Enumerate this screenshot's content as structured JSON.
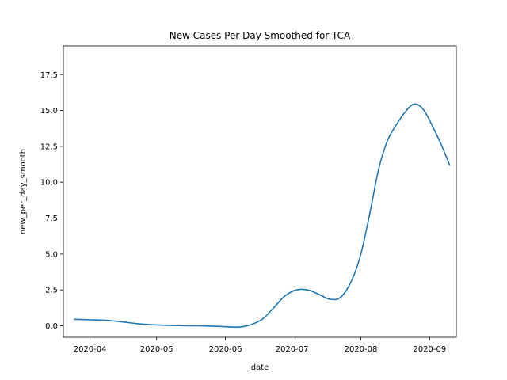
{
  "chart_data": {
    "type": "line",
    "title": "New Cases Per Day Smoothed for TCA",
    "xlabel": "date",
    "ylabel": "new_per_day_smooth",
    "x_ticks": [
      "2020-04",
      "2020-05",
      "2020-06",
      "2020-07",
      "2020-08",
      "2020-09"
    ],
    "y_ticks": [
      "0.0",
      "2.5",
      "5.0",
      "7.5",
      "10.0",
      "12.5",
      "15.0",
      "17.5"
    ],
    "xlim": [
      "2020-03-20",
      "2020-09-13"
    ],
    "ylim": [
      -0.8,
      19.5
    ],
    "grid": false,
    "series": [
      {
        "color": "#1f77b4",
        "x": [
          "2020-03-25",
          "2020-04-01",
          "2020-04-08",
          "2020-04-15",
          "2020-04-22",
          "2020-04-29",
          "2020-05-06",
          "2020-05-13",
          "2020-05-20",
          "2020-05-27",
          "2020-06-03",
          "2020-06-08",
          "2020-06-13",
          "2020-06-18",
          "2020-06-23",
          "2020-06-28",
          "2020-07-03",
          "2020-07-08",
          "2020-07-13",
          "2020-07-18",
          "2020-07-23",
          "2020-07-28",
          "2020-08-01",
          "2020-08-05",
          "2020-08-09",
          "2020-08-13",
          "2020-08-17",
          "2020-08-21",
          "2020-08-25",
          "2020-08-29",
          "2020-09-02",
          "2020-09-06",
          "2020-09-10"
        ],
        "y": [
          0.45,
          0.42,
          0.38,
          0.28,
          0.15,
          0.07,
          0.03,
          0.01,
          0.0,
          -0.03,
          -0.08,
          -0.08,
          0.1,
          0.5,
          1.3,
          2.1,
          2.5,
          2.5,
          2.2,
          1.85,
          2.0,
          3.2,
          5.0,
          7.8,
          10.9,
          12.9,
          14.0,
          14.9,
          15.45,
          15.1,
          14.0,
          12.7,
          11.2
        ]
      }
    ]
  }
}
